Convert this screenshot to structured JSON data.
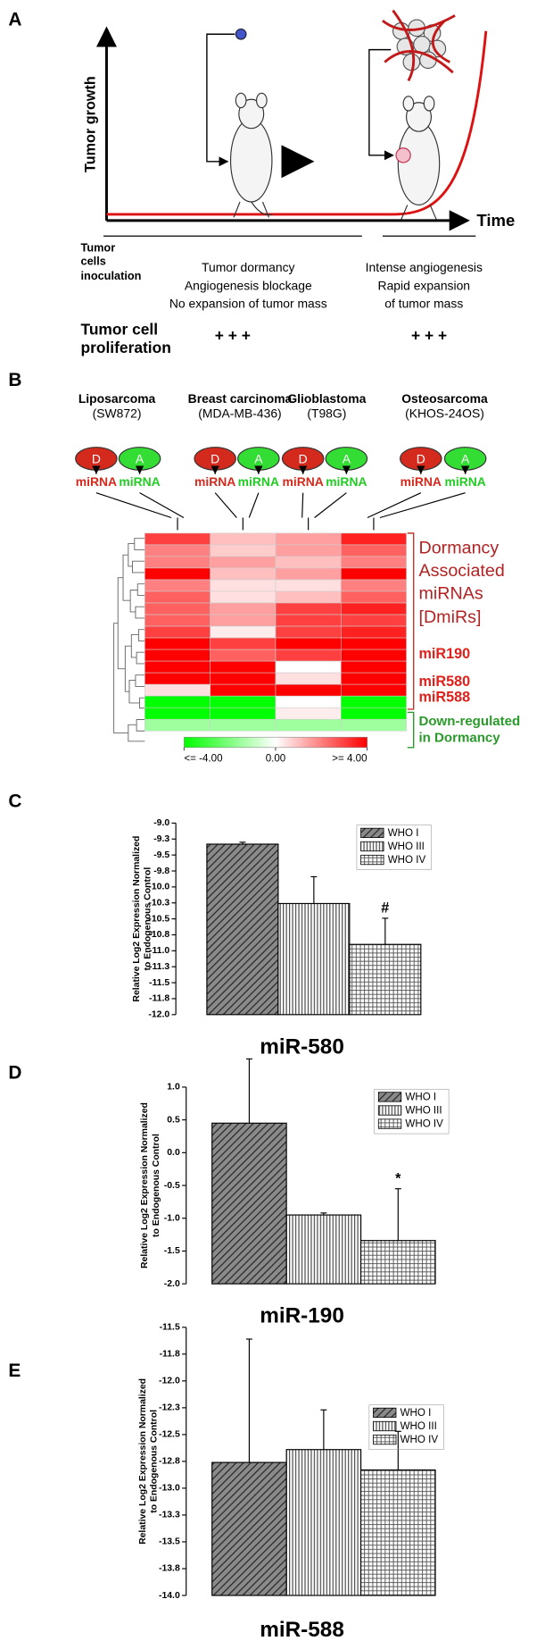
{
  "panel_a": {
    "label": "A",
    "y_axis": "Tumor growth",
    "x_axis": "Time",
    "inoculation": [
      "Tumor",
      "cells",
      "inoculation"
    ],
    "left_text": [
      "Tumor dormancy",
      "Angiogenesis blockage",
      "No expansion of tumor mass"
    ],
    "right_text": [
      "Intense angiogenesis",
      "Rapid expansion",
      "of tumor mass"
    ],
    "proliferation": [
      "Tumor cell",
      "proliferation"
    ],
    "left_plus": "+ + +",
    "right_plus": "+ + +"
  },
  "panel_b": {
    "label": "B",
    "cell_lines": [
      {
        "name": "Liposarcoma",
        "line": "(SW872)"
      },
      {
        "name": "Breast carcinoma",
        "line": "(MDA-MB-436)"
      },
      {
        "name": "Glioblastoma",
        "line": "(T98G)"
      },
      {
        "name": "Osteosarcoma",
        "line": "(KHOS-24OS)"
      }
    ],
    "dormant": "D",
    "angiogenic": "A",
    "mirna": "miRNA",
    "heatmap": {
      "values": [
        [
          3,
          1,
          1.5,
          3.5
        ],
        [
          2,
          0.8,
          1.5,
          2.5
        ],
        [
          2,
          1.5,
          1,
          2
        ],
        [
          4,
          1,
          1.5,
          4
        ],
        [
          2,
          0.5,
          0.5,
          2
        ],
        [
          2.5,
          0.5,
          1,
          2.5
        ],
        [
          2.5,
          1.5,
          3,
          3.5
        ],
        [
          2.5,
          1.5,
          3,
          3
        ],
        [
          3,
          0.3,
          3,
          3.5
        ],
        [
          4,
          3,
          4,
          4
        ],
        [
          4,
          2.5,
          3,
          4
        ],
        [
          4,
          4,
          0,
          4
        ],
        [
          4,
          4,
          0.5,
          4
        ],
        [
          0.5,
          4,
          4,
          4
        ],
        [
          -4,
          -4,
          0,
          -4
        ],
        [
          -4,
          -4,
          0.3,
          -4
        ],
        [
          -1.5,
          -1.5,
          -1.5,
          -1.5
        ]
      ],
      "colorbar": [
        {
          "value": -4,
          "label": "<= -4.00"
        },
        {
          "value": 0,
          "label": "0.00"
        },
        {
          "value": 4,
          "label": ">= 4.00"
        }
      ]
    },
    "dmirs": [
      "Dormancy",
      "Associated",
      "miRNAs",
      "[DmiRs]"
    ],
    "mir_labels": [
      "miR190",
      "miR580",
      "miR588"
    ],
    "down": [
      "Down-regulated",
      "in Dormancy"
    ]
  },
  "chart_data": [
    {
      "type": "bar",
      "label": "C",
      "title": "miR-580",
      "y_label": [
        "Relative Log2 Expression Normalized",
        "to Endogenous Control"
      ],
      "ylim": [
        -12,
        -9
      ],
      "yticks": [
        {
          "value": -9,
          "label": "-9.0"
        },
        {
          "value": -9.25,
          "label": "-9.3"
        },
        -9.5,
        {
          "value": -9.75,
          "label": "-9.8"
        },
        {
          "value": -10,
          "label": "-10.0"
        },
        {
          "value": -10.25,
          "label": "-10.3"
        },
        -10.5,
        {
          "value": -10.75,
          "label": "-10.8"
        },
        {
          "value": -11,
          "label": "-11.0"
        },
        {
          "value": -11.25,
          "label": "-11.3"
        },
        -11.5,
        {
          "value": -11.75,
          "label": "-11.8"
        },
        {
          "value": -12,
          "label": "-12.0"
        }
      ],
      "series": [
        {
          "name": "WHO I",
          "pattern": "diagonal",
          "values": [
            -9.33
          ],
          "errors": [
            0.03
          ]
        },
        {
          "name": "WHO III",
          "pattern": "vertical",
          "values": [
            -10.26
          ],
          "errors": [
            0.42
          ]
        },
        {
          "name": "WHO IV",
          "pattern": "grid",
          "values": [
            -10.9
          ],
          "errors": [
            0.41
          ]
        }
      ],
      "annotation": "#"
    },
    {
      "type": "bar",
      "label": "D",
      "title": "miR-190",
      "y_label": [
        "Relative Log2 Expression Normalized",
        "to Endogenous Control"
      ],
      "ylim": [
        -2,
        1
      ],
      "yticks": [
        {
          "value": 1,
          "label": "1.0"
        },
        0.5,
        {
          "value": 0,
          "label": "0.0"
        },
        -0.5,
        {
          "value": -1,
          "label": "-1.0"
        },
        -1.5,
        {
          "value": -2,
          "label": "-2.0"
        }
      ],
      "series": [
        {
          "name": "WHO I",
          "pattern": "diagonal",
          "values": [
            0.45
          ],
          "errors": [
            0.98
          ]
        },
        {
          "name": "WHO III",
          "pattern": "vertical",
          "values": [
            -0.95
          ],
          "errors": [
            0.03
          ]
        },
        {
          "name": "WHO IV",
          "pattern": "grid",
          "values": [
            -1.34
          ],
          "errors": [
            0.79
          ]
        }
      ],
      "annotation": "*"
    },
    {
      "type": "bar",
      "label": "E",
      "title": "miR-588",
      "y_label": [
        "Relative Log2 Expression Normalized",
        "to Endogenous Control"
      ],
      "ylim": [
        -14,
        -11.5
      ],
      "yticks": [
        -11.5,
        {
          "value": -11.75,
          "label": "-11.8"
        },
        {
          "value": -12,
          "label": "-12.0"
        },
        {
          "value": -12.25,
          "label": "-12.3"
        },
        -12.5,
        {
          "value": -12.75,
          "label": "-12.8"
        },
        {
          "value": -13,
          "label": "-13.0"
        },
        {
          "value": -13.25,
          "label": "-13.3"
        },
        -13.5,
        {
          "value": -13.75,
          "label": "-13.8"
        },
        {
          "value": -14,
          "label": "-14.0"
        }
      ],
      "series": [
        {
          "name": "WHO I",
          "pattern": "diagonal",
          "values": [
            -12.76
          ],
          "errors": [
            1.15
          ]
        },
        {
          "name": "WHO III",
          "pattern": "vertical",
          "values": [
            -12.64
          ],
          "errors": [
            0.37
          ]
        },
        {
          "name": "WHO IV",
          "pattern": "grid",
          "values": [
            -12.83
          ],
          "errors": [
            0.36
          ]
        }
      ]
    }
  ]
}
